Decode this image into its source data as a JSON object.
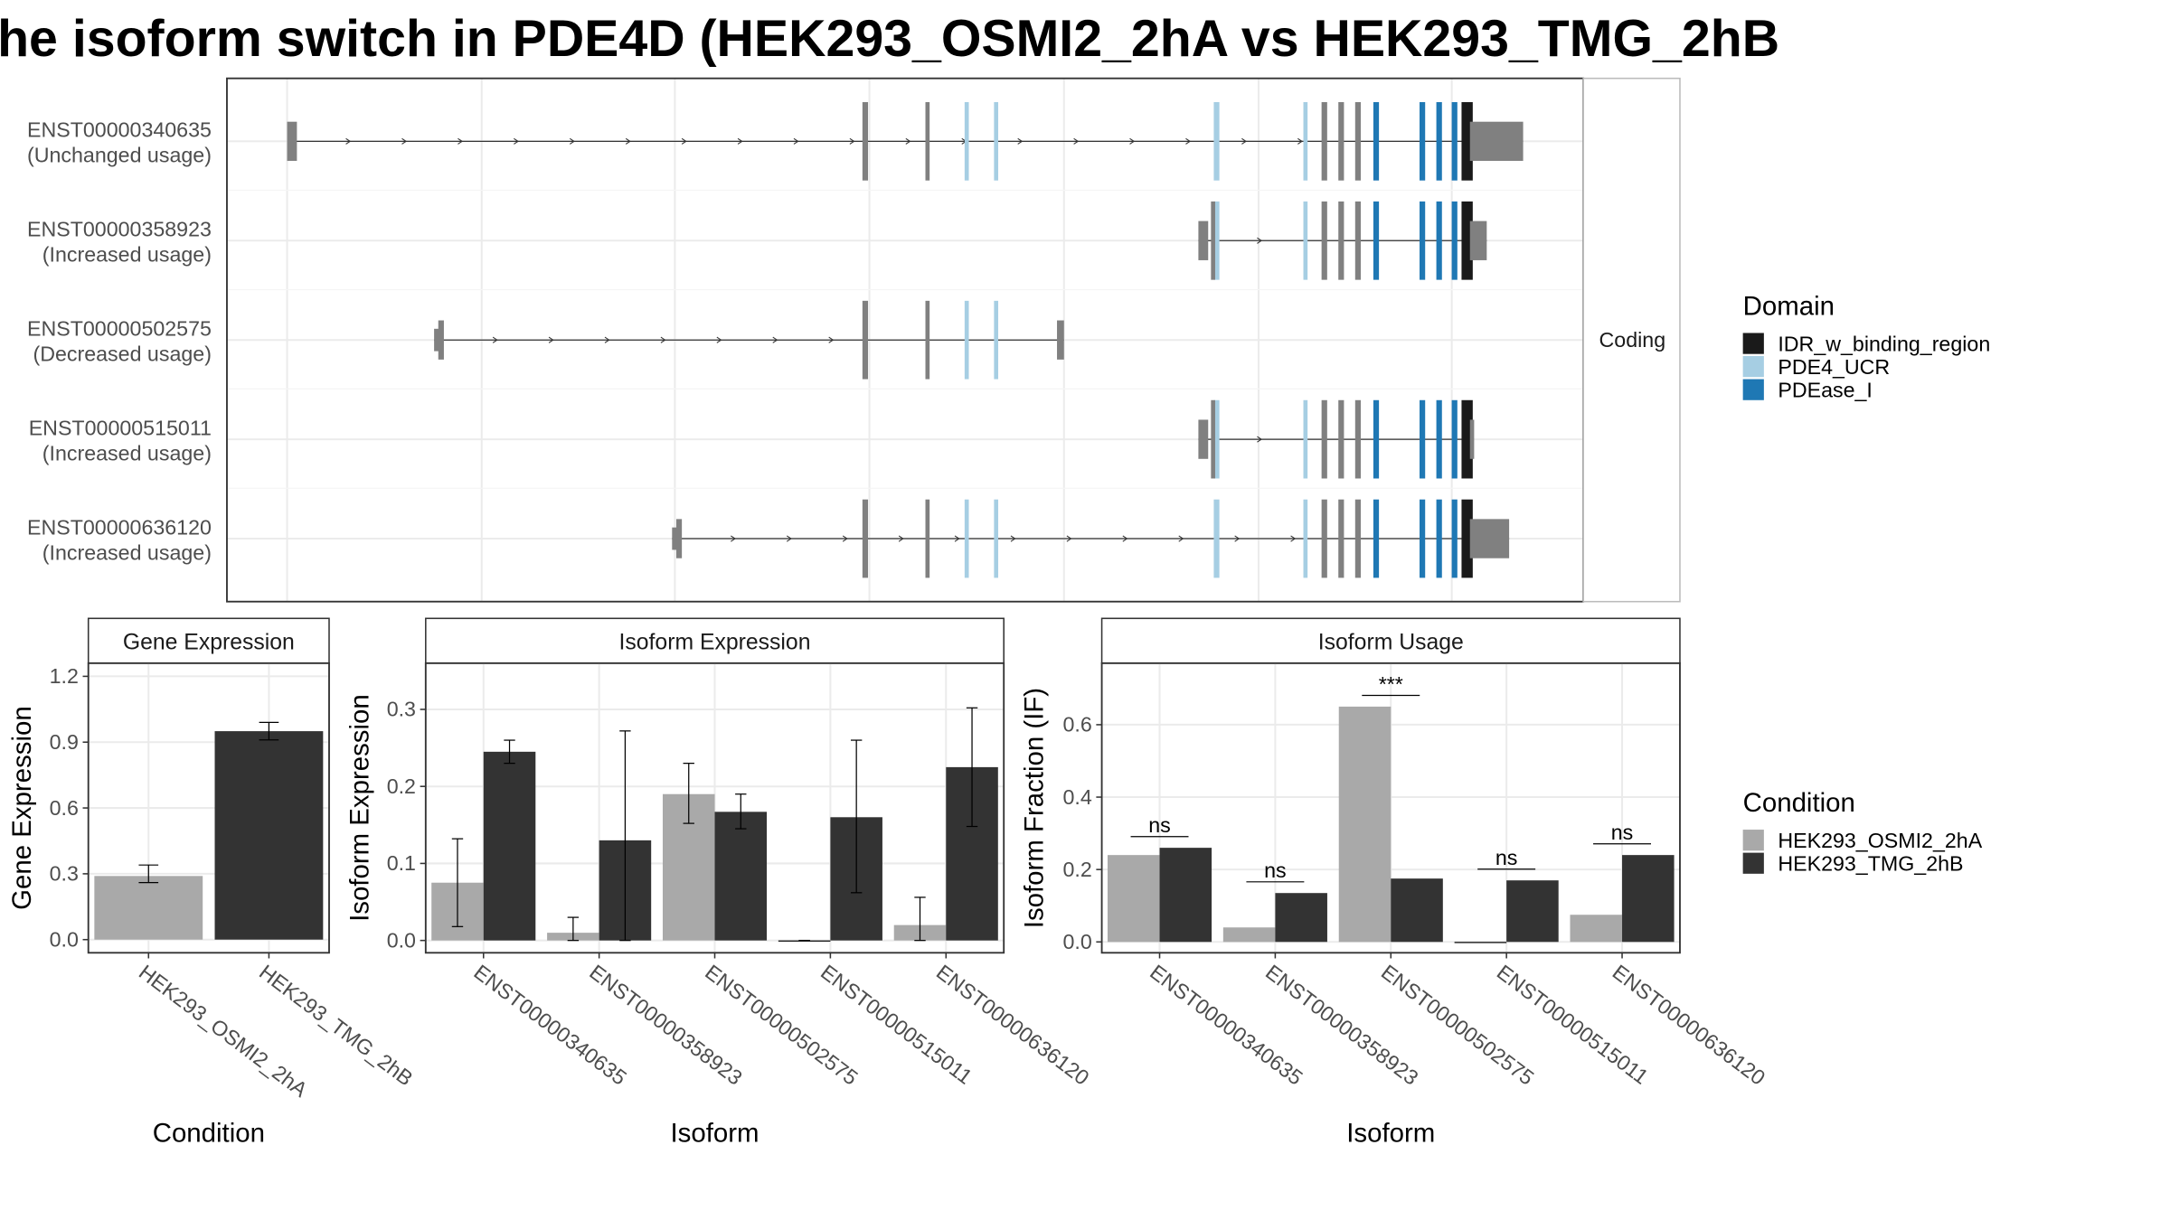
{
  "title": "he isoform switch in PDE4D (HEK293_OSMI2_2hA vs HEK293_TMG_2hB",
  "colors": {
    "idr": "#1a1a1a",
    "ucr": "#a6cee3",
    "pdease": "#1f78b4",
    "noncoding_exon": "#808080",
    "cond_a": "#a9a9a9",
    "cond_b": "#333333",
    "grid": "#ebebeb",
    "strip_bg": "#ffffff",
    "panel_border": "#333333",
    "text": "#4d4d4d"
  },
  "structure": {
    "strip_label": "Coding",
    "legend_title": "Domain",
    "legend": [
      {
        "label": "IDR_w_binding_region",
        "color_key": "idr"
      },
      {
        "label": "PDE4_UCR",
        "color_key": "ucr"
      },
      {
        "label": "PDEase_I",
        "color_key": "pdease"
      }
    ],
    "isoforms": [
      {
        "id": "ENST00000340635",
        "usage": "(Unchanged usage)",
        "start": 205,
        "end": 1088,
        "start_exon": "tall",
        "end_box": [
          1050,
          1088
        ]
      },
      {
        "id": "ENST00000358923",
        "usage": "(Increased usage)",
        "start": 856,
        "end": 1062,
        "start_exon": "nc",
        "end_box": [
          1050,
          1062
        ]
      },
      {
        "id": "ENST00000502575",
        "usage": "(Decreased usage)",
        "start": 310,
        "end": 760,
        "start_exon": "mixed",
        "end_box": [
          755,
          760
        ]
      },
      {
        "id": "ENST00000515011",
        "usage": "(Increased usage)",
        "start": 856,
        "end": 1052,
        "start_exon": "nc",
        "end_box": null
      },
      {
        "id": "ENST00000636120",
        "usage": "(Increased usage)",
        "start": 480,
        "end": 1078,
        "start_exon": "mixed",
        "end_box": [
          1050,
          1078
        ]
      }
    ]
  },
  "chart_data": [
    {
      "type": "bar",
      "title": "Gene Expression",
      "xlabel": "Condition",
      "ylabel": "Gene Expression",
      "categories": [
        "HEK293_OSMI2_2hA",
        "HEK293_TMG_2hB"
      ],
      "values": [
        0.29,
        0.95
      ],
      "error_low": [
        0.26,
        0.91
      ],
      "error_high": [
        0.34,
        0.99
      ],
      "ylim": [
        0,
        1.2
      ],
      "yticks": [
        "0.0",
        "0.3",
        "0.6",
        "0.9",
        "1.2"
      ]
    },
    {
      "type": "bar",
      "title": "Isoform Expression",
      "xlabel": "Isoform",
      "ylabel": "Isoform Expression",
      "categories": [
        "ENST00000340635",
        "ENST00000358923",
        "ENST00000502575",
        "ENST00000515011",
        "ENST00000636120"
      ],
      "series": [
        {
          "name": "HEK293_OSMI2_2hA",
          "values": [
            0.075,
            0.01,
            0.19,
            0.0,
            0.02
          ],
          "error_low": [
            0.018,
            0.0,
            0.152,
            0.0,
            0.0
          ],
          "error_high": [
            0.132,
            0.03,
            0.23,
            0.0,
            0.056
          ]
        },
        {
          "name": "HEK293_TMG_2hB",
          "values": [
            0.245,
            0.13,
            0.167,
            0.16,
            0.225
          ],
          "error_low": [
            0.23,
            0.0,
            0.145,
            0.062,
            0.148
          ],
          "error_high": [
            0.26,
            0.272,
            0.19,
            0.26,
            0.302
          ]
        }
      ],
      "ylim": [
        0,
        0.36
      ],
      "yticks": [
        "0.0",
        "0.1",
        "0.2",
        "0.3"
      ]
    },
    {
      "type": "bar",
      "title": "Isoform Usage",
      "xlabel": "Isoform",
      "ylabel": "Isoform Fraction (IF)",
      "categories": [
        "ENST00000340635",
        "ENST00000358923",
        "ENST00000502575",
        "ENST00000515011",
        "ENST00000636120"
      ],
      "series": [
        {
          "name": "HEK293_OSMI2_2hA",
          "values": [
            0.24,
            0.04,
            0.65,
            0.0,
            0.075
          ]
        },
        {
          "name": "HEK293_TMG_2hB",
          "values": [
            0.26,
            0.135,
            0.175,
            0.17,
            0.24
          ]
        }
      ],
      "significance": [
        "ns",
        "ns",
        "***",
        "ns",
        "ns"
      ],
      "ylim": [
        0,
        0.77
      ],
      "yticks": [
        "0.0",
        "0.2",
        "0.4",
        "0.6"
      ]
    }
  ],
  "condition_legend": {
    "title": "Condition",
    "items": [
      {
        "label": "HEK293_OSMI2_2hA",
        "color_key": "cond_a"
      },
      {
        "label": "HEK293_TMG_2hB",
        "color_key": "cond_b"
      }
    ]
  }
}
